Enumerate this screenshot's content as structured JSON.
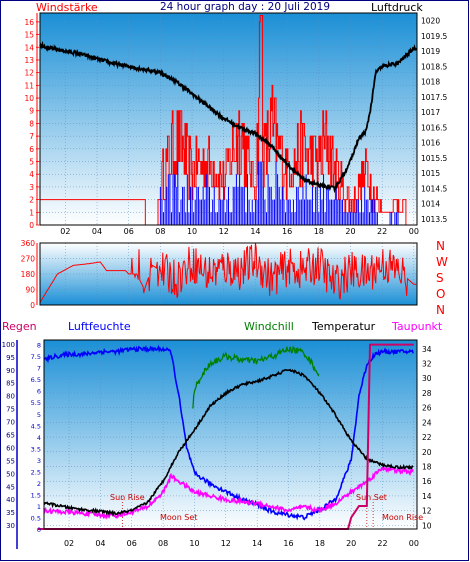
{
  "header": {
    "left_label": "Windstärke",
    "title": "24 hour graph day : 20 Juli 2019",
    "right_label": "Luftdruck"
  },
  "direction_labels": [
    "N",
    "W",
    "S",
    "O",
    "N"
  ],
  "bottom_labels": {
    "regen": "Regen",
    "luftfeuchte": "Luftfeuchte",
    "windchill": "Windchill",
    "temperatur": "Temperatur",
    "taupunkt": "Taupunkt"
  },
  "annotations": {
    "sun_rise": "Sun Rise",
    "moon_set": "Moon Set",
    "sun_set": "Sun Set",
    "moon_rise": "Moon Rise"
  },
  "colors": {
    "wind": "#ff0000",
    "gust_blue": "#0000ff",
    "pressure": "#000000",
    "humidity": "#0000ff",
    "windchill": "#008000",
    "temperature": "#000000",
    "dewpoint": "#ff00ff",
    "rain": "#cc0066",
    "frame": "#000080",
    "bg_top": "#1a8fd6",
    "bg_bottom": "#ffffff"
  },
  "chart_data": [
    {
      "type": "line",
      "title": "24 hour graph day : 20 Juli 2019",
      "xlabel": "",
      "x_ticks": [
        "02",
        "04",
        "06",
        "08",
        "10",
        "12",
        "14",
        "16",
        "18",
        "20",
        "22",
        "00"
      ],
      "y_left_ticks": [
        0,
        1,
        2,
        3,
        4,
        5,
        6,
        7,
        8,
        9,
        10,
        11,
        12,
        13,
        14,
        15,
        16
      ],
      "y_right_ticks": [
        1013.5,
        1014,
        1014.5,
        1015,
        1015.5,
        1016,
        1016.5,
        1017,
        1017.5,
        1018,
        1018.5,
        1019,
        1019.5,
        1020
      ],
      "ylim_left": [
        0,
        16.7
      ],
      "ylim_right": [
        1013.3,
        1020.25
      ],
      "series": [
        {
          "name": "Windstärke",
          "x": [
            0,
            2,
            4,
            6,
            7,
            7.8,
            8,
            9,
            10,
            11,
            12,
            13,
            14,
            14.3,
            14.5,
            15,
            16,
            17,
            18,
            18.5,
            19,
            20,
            21,
            22,
            23,
            23.5,
            24
          ],
          "values": [
            0,
            2,
            2,
            2,
            0,
            0,
            4,
            8,
            5,
            6,
            4,
            9,
            3,
            16.5,
            6,
            9,
            5,
            7,
            6,
            8,
            5,
            2,
            5,
            1,
            2,
            0,
            0
          ]
        },
        {
          "name": "Luftdruck",
          "x": [
            0,
            1,
            2,
            3,
            4,
            5,
            6,
            7,
            8,
            9,
            10,
            11,
            12,
            13,
            14,
            15,
            16,
            17,
            18,
            19,
            19.5,
            20,
            20.5,
            21,
            21.3,
            21.6,
            22,
            23,
            24
          ],
          "values": [
            1019.3,
            1019.1,
            1019.0,
            1018.9,
            1018.75,
            1018.6,
            1018.5,
            1018.4,
            1018.3,
            1018.0,
            1017.6,
            1017.2,
            1016.8,
            1016.5,
            1016.3,
            1015.9,
            1015.3,
            1014.8,
            1014.6,
            1014.5,
            1014.9,
            1015.4,
            1016.1,
            1016.4,
            1017.2,
            1018.3,
            1018.5,
            1018.6,
            1019.1
          ]
        }
      ]
    },
    {
      "type": "line",
      "xlabel": "",
      "y_ticks": [
        0,
        90,
        180,
        270,
        360
      ],
      "ylim": [
        0,
        360
      ],
      "series": [
        {
          "name": "Windrichtung",
          "x": [
            0,
            0.3,
            1.5,
            2.5,
            3.5,
            4.2,
            4.6,
            5.8,
            6,
            6.5,
            7,
            7.5,
            8,
            9,
            10,
            11,
            12,
            13,
            14,
            15,
            16,
            17,
            18,
            19,
            20,
            21,
            22,
            23,
            24
          ],
          "values": [
            270,
            0,
            180,
            230,
            240,
            250,
            200,
            200,
            180,
            180,
            90,
            230,
            200,
            150,
            250,
            180,
            220,
            200,
            260,
            150,
            220,
            200,
            240,
            120,
            200,
            180,
            240,
            200,
            120
          ]
        }
      ]
    },
    {
      "type": "line",
      "x_ticks": [
        "02",
        "04",
        "06",
        "08",
        "10",
        "12",
        "14",
        "16",
        "18",
        "20",
        "22",
        "00"
      ],
      "y_rain_ticks": [
        0,
        0.5,
        1,
        1.5,
        2,
        2.5,
        3,
        3.5,
        4,
        4.5,
        5,
        5.5,
        6,
        6.5,
        7,
        7.5,
        8
      ],
      "y_humidity_ticks": [
        30,
        35,
        40,
        45,
        50,
        55,
        60,
        65,
        70,
        75,
        80,
        85,
        90,
        95,
        100
      ],
      "y_temp_ticks": [
        10,
        12,
        14,
        16,
        18,
        20,
        22,
        24,
        26,
        28,
        30,
        32,
        34
      ],
      "series": [
        {
          "name": "Luftfeuchte",
          "x": [
            0,
            1,
            2,
            3,
            4,
            5,
            6,
            7,
            8,
            8.5,
            9,
            9.5,
            10,
            11,
            12,
            13,
            14,
            15,
            16,
            17,
            18,
            19,
            20,
            20.5,
            21,
            21.5,
            22,
            23,
            24
          ],
          "values": [
            93,
            95,
            96,
            96,
            97,
            97,
            98,
            98,
            98,
            97,
            80,
            60,
            50,
            46,
            43,
            40,
            38,
            35,
            34,
            33,
            36,
            40,
            55,
            80,
            92,
            96,
            97,
            97,
            97
          ]
        },
        {
          "name": "Temperatur",
          "x": [
            0,
            1,
            2,
            3,
            4,
            5,
            6,
            7,
            8,
            9,
            10,
            11,
            12,
            13,
            14,
            15,
            16,
            17,
            18,
            19,
            20,
            21,
            22,
            23,
            24
          ],
          "values": [
            13.3,
            12.8,
            12.4,
            12.1,
            11.9,
            11.6,
            12.0,
            13.1,
            16.0,
            20.0,
            23.0,
            26.2,
            28.0,
            29.1,
            29.6,
            30.3,
            31.2,
            30.4,
            28.0,
            25.0,
            21.5,
            19.0,
            18.2,
            17.9,
            17.9
          ]
        },
        {
          "name": "Windchill",
          "x": [
            9.9,
            10,
            10.5,
            11,
            12,
            13,
            14,
            15,
            16,
            17,
            17.5,
            18
          ],
          "values": [
            26.0,
            28.5,
            30.5,
            32.0,
            33.0,
            32.5,
            32.3,
            33.0,
            34.0,
            33.5,
            32.0,
            30.3
          ]
        },
        {
          "name": "Taupunkt",
          "x": [
            0,
            1,
            2,
            3,
            4,
            5,
            6,
            7,
            8,
            8.5,
            9,
            10,
            11,
            12,
            13,
            14,
            15,
            16,
            17,
            18,
            19,
            20,
            21,
            22,
            23,
            24
          ],
          "values": [
            12.1,
            11.9,
            11.8,
            11.6,
            11.4,
            11.3,
            11.8,
            12.5,
            14.5,
            16.7,
            16.0,
            14.5,
            14.0,
            13.5,
            13.2,
            13.0,
            12.5,
            12.0,
            12.5,
            12.0,
            13.0,
            14.5,
            16.0,
            17.8,
            17.4,
            17.2
          ]
        },
        {
          "name": "Regen",
          "x": [
            0,
            19.8,
            20,
            20.5,
            21,
            21.2,
            21.5,
            22,
            24
          ],
          "values": [
            0,
            0,
            0.5,
            1,
            1,
            8,
            8,
            8,
            8
          ]
        }
      ]
    }
  ]
}
